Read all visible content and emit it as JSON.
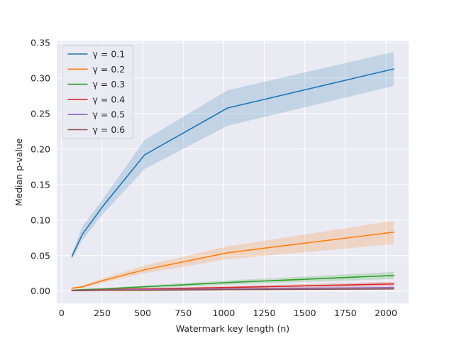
{
  "chart_data": {
    "type": "line",
    "title": "",
    "xlabel": "Watermark key length (n)",
    "ylabel": "Median p-value",
    "xlim": [
      -30,
      2140
    ],
    "ylim": [
      -0.0175,
      0.3525
    ],
    "xticks": [
      0,
      250,
      500,
      750,
      1000,
      1250,
      1500,
      1750,
      2000
    ],
    "yticks": [
      0.0,
      0.05,
      0.1,
      0.15,
      0.2,
      0.25,
      0.3,
      0.35
    ],
    "xtick_labels": [
      "0",
      "250",
      "500",
      "750",
      "1000",
      "1250",
      "1500",
      "1750",
      "2000"
    ],
    "ytick_labels": [
      "0.00",
      "0.05",
      "0.10",
      "0.15",
      "0.20",
      "0.25",
      "0.30",
      "0.35"
    ],
    "grid": true,
    "legend_position": "top-left",
    "x": [
      64,
      128,
      256,
      512,
      1024,
      2048
    ],
    "series": [
      {
        "name": "γ = 0.1",
        "color": "#1f77b4",
        "values": [
          0.049,
          0.08,
          0.12,
          0.192,
          0.258,
          0.313
        ],
        "lower": [
          0.045,
          0.072,
          0.109,
          0.172,
          0.233,
          0.289
        ],
        "upper": [
          0.053,
          0.091,
          0.13,
          0.213,
          0.283,
          0.337
        ]
      },
      {
        "name": "γ = 0.2",
        "color": "#ff7f0e",
        "values": [
          0.004,
          0.006,
          0.015,
          0.03,
          0.054,
          0.083
        ],
        "lower": [
          0.003,
          0.004,
          0.012,
          0.025,
          0.045,
          0.066
        ],
        "upper": [
          0.005,
          0.008,
          0.018,
          0.036,
          0.063,
          0.099
        ]
      },
      {
        "name": "γ = 0.3",
        "color": "#2ca02c",
        "values": [
          0.001,
          0.002,
          0.003,
          0.006,
          0.012,
          0.022
        ],
        "lower": [
          0.0005,
          0.001,
          0.002,
          0.004,
          0.009,
          0.017
        ],
        "upper": [
          0.0015,
          0.003,
          0.004,
          0.008,
          0.015,
          0.027
        ]
      },
      {
        "name": "γ = 0.4",
        "color": "#d62728",
        "values": [
          0.001,
          0.001,
          0.002,
          0.003,
          0.005,
          0.01
        ],
        "lower": [
          0.0005,
          0.0005,
          0.001,
          0.002,
          0.003,
          0.007
        ],
        "upper": [
          0.0015,
          0.0015,
          0.003,
          0.004,
          0.007,
          0.013
        ]
      },
      {
        "name": "γ = 0.5",
        "color": "#9467bd",
        "values": [
          0.0005,
          0.001,
          0.0015,
          0.002,
          0.003,
          0.005
        ],
        "lower": [
          0.0,
          0.0005,
          0.001,
          0.0015,
          0.002,
          0.003
        ],
        "upper": [
          0.001,
          0.0015,
          0.002,
          0.0025,
          0.004,
          0.007
        ]
      },
      {
        "name": "γ = 0.6",
        "color": "#8c564b",
        "values": [
          0.0005,
          0.0005,
          0.001,
          0.001,
          0.002,
          0.003
        ],
        "lower": [
          0.0,
          0.0,
          0.0005,
          0.0005,
          0.001,
          0.002
        ],
        "upper": [
          0.001,
          0.001,
          0.0015,
          0.0015,
          0.003,
          0.004
        ]
      }
    ]
  }
}
